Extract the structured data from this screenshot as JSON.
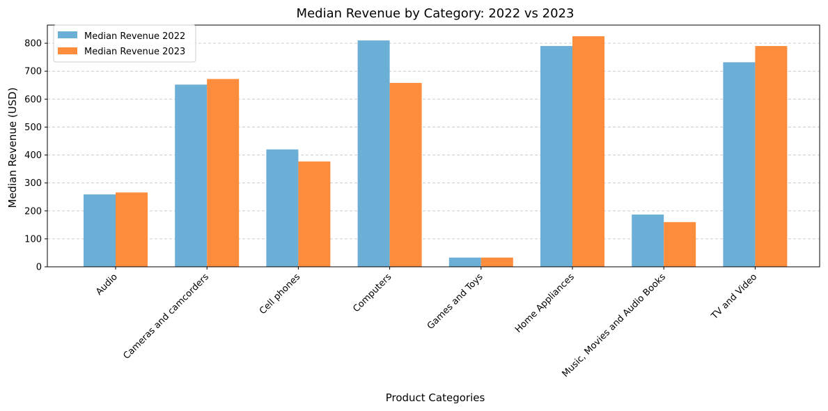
{
  "chart_data": {
    "type": "bar",
    "title": "Median Revenue by Category: 2022 vs 2023",
    "xlabel": "Product Categories",
    "ylabel": "Median Revenue (USD)",
    "ylim": [
      0,
      865
    ],
    "yticks": [
      0,
      100,
      200,
      300,
      400,
      500,
      600,
      700,
      800
    ],
    "grid": "y-dashed",
    "legend_position": "top-left",
    "categories": [
      "Audio",
      "Cameras and camcorders",
      "Cell phones",
      "Computers",
      "Games and Toys",
      "Home Appliances",
      "Music, Movies and Audio Books",
      "TV and Video"
    ],
    "series": [
      {
        "name": "Median Revenue 2022",
        "color": "#6baed6",
        "values": [
          259,
          652,
          420,
          810,
          33,
          790,
          187,
          732
        ]
      },
      {
        "name": "Median Revenue 2023",
        "color": "#fd8d3c",
        "values": [
          266,
          672,
          377,
          658,
          33,
          825,
          160,
          790
        ]
      }
    ]
  }
}
